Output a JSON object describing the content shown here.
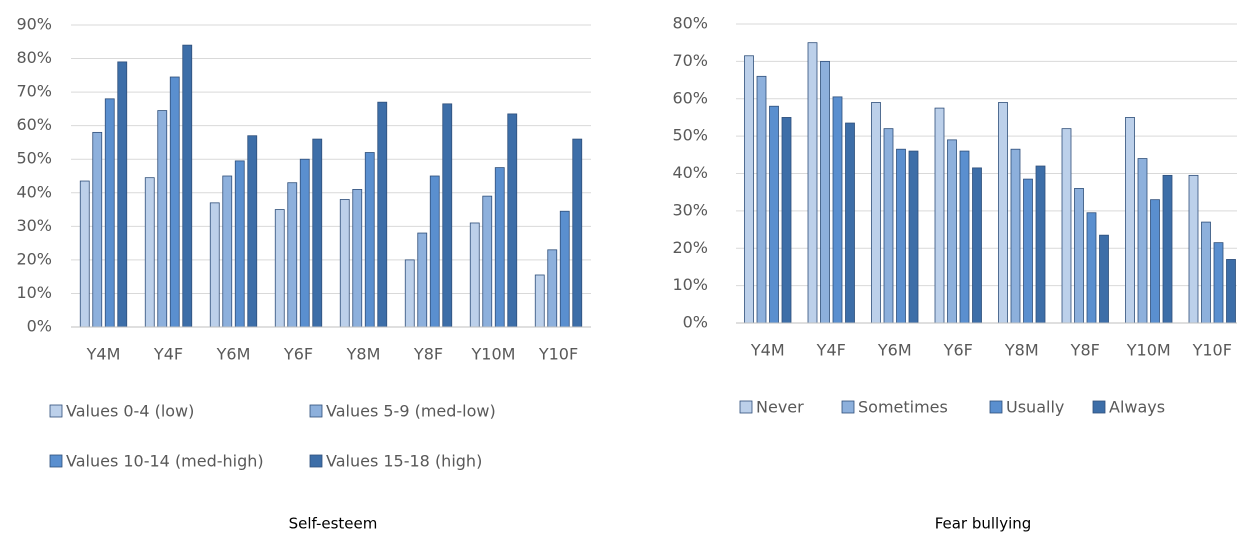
{
  "chart_data": [
    {
      "type": "bar",
      "title": "Self-esteem",
      "categories": [
        "Y4M",
        "Y4F",
        "Y6M",
        "Y6F",
        "Y8M",
        "Y8F",
        "Y10M",
        "Y10F"
      ],
      "series": [
        {
          "name": "Values 0-4 (low)",
          "color": "#bcd0ea",
          "values": [
            43.5,
            44.5,
            37,
            35,
            38,
            20,
            31,
            15.5
          ]
        },
        {
          "name": "Values 5-9 (med-low)",
          "color": "#8db0dc",
          "values": [
            58,
            64.5,
            45,
            43,
            41,
            28,
            39,
            23
          ]
        },
        {
          "name": "Values 10-14 (med-high)",
          "color": "#5a8fcf",
          "values": [
            68,
            74.5,
            49.5,
            50,
            52,
            45,
            47.5,
            34.5
          ]
        },
        {
          "name": "Values 15-18 (high)",
          "color": "#3d6ea8",
          "values": [
            79,
            84,
            57,
            56,
            67,
            66.5,
            63.5,
            56
          ]
        }
      ],
      "ylim": [
        0,
        90
      ],
      "yticks": [
        {
          "value": 0,
          "label": "0%"
        },
        {
          "value": 10,
          "label": "10%"
        },
        {
          "value": 20,
          "label": "20%"
        },
        {
          "value": 30,
          "label": "30%"
        },
        {
          "value": 40,
          "label": "40%"
        },
        {
          "value": 50,
          "label": "50%"
        },
        {
          "value": 60,
          "label": "60%"
        },
        {
          "value": 70,
          "label": "70%"
        },
        {
          "value": 80,
          "label": "80%"
        },
        {
          "value": 90,
          "label": "90%"
        }
      ],
      "grid": true
    },
    {
      "type": "bar",
      "title": "Fear bullying",
      "categories": [
        "Y4M",
        "Y4F",
        "Y6M",
        "Y6F",
        "Y8M",
        "Y8F",
        "Y10M",
        "Y10F"
      ],
      "series": [
        {
          "name": "Never",
          "color": "#bcd0ea",
          "values": [
            71.5,
            75,
            59,
            57.5,
            59,
            52,
            55,
            39.5
          ]
        },
        {
          "name": "Sometimes",
          "color": "#8db0dc",
          "values": [
            66,
            70,
            52,
            49,
            46.5,
            36,
            44,
            27
          ]
        },
        {
          "name": "Usually",
          "color": "#5a8fcf",
          "values": [
            58,
            60.5,
            46.5,
            46,
            38.5,
            29.5,
            33,
            21.5
          ]
        },
        {
          "name": "Always",
          "color": "#3d6ea8",
          "values": [
            55,
            53.5,
            46,
            41.5,
            42,
            23.5,
            39.5,
            17
          ]
        }
      ],
      "ylim": [
        0,
        80
      ],
      "yticks": [
        {
          "value": 0,
          "label": "0%"
        },
        {
          "value": 10,
          "label": "10%"
        },
        {
          "value": 20,
          "label": "20%"
        },
        {
          "value": 30,
          "label": "30%"
        },
        {
          "value": 40,
          "label": "40%"
        },
        {
          "value": 50,
          "label": "50%"
        },
        {
          "value": 60,
          "label": "60%"
        },
        {
          "value": 70,
          "label": "70%"
        },
        {
          "value": 80,
          "label": "80%"
        }
      ],
      "grid": true
    }
  ]
}
